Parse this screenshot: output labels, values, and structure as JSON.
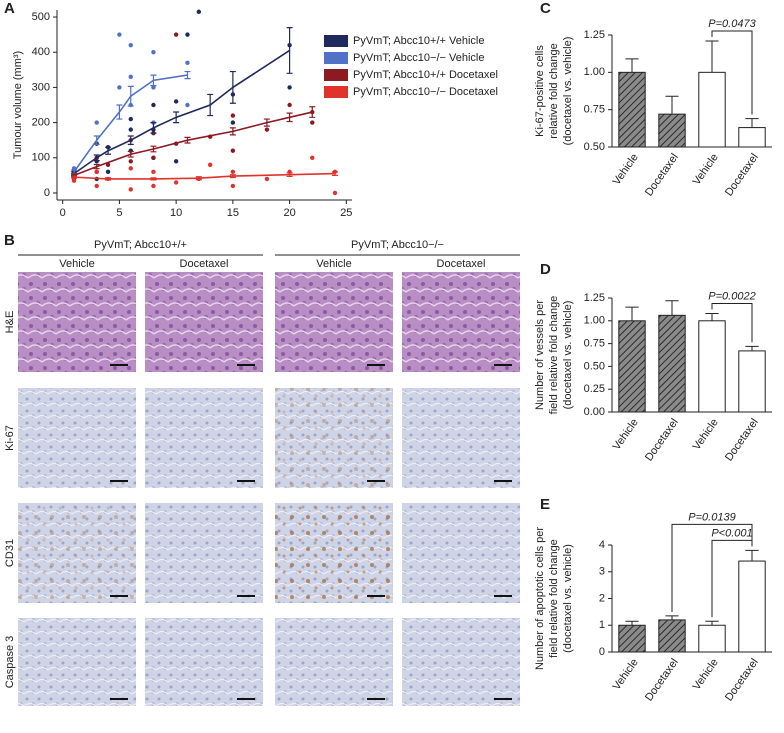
{
  "chart_data": [
    {
      "type": "line",
      "panel_label": "A",
      "ylabel": "Tumour volume (mm³)",
      "xlim": [
        -0.5,
        25.5
      ],
      "xticks": [
        0,
        5,
        10,
        15,
        20,
        25
      ],
      "ylim": [
        -20,
        520
      ],
      "yticks": [
        0,
        100,
        200,
        300,
        400,
        500
      ],
      "series": [
        {
          "name": "PyVmT; Abcc10+/+ Vehicle",
          "color": "#1f2a5c",
          "x": [
            1,
            3,
            4,
            6,
            8,
            10,
            13,
            15,
            20
          ],
          "values": [
            55,
            100,
            120,
            150,
            185,
            215,
            250,
            300,
            405
          ],
          "errors": [
            5,
            8,
            10,
            12,
            15,
            15,
            30,
            45,
            65
          ],
          "points_x": [
            1,
            1,
            3,
            3,
            3,
            4,
            4,
            6,
            6,
            6,
            8,
            8,
            8,
            10,
            10,
            11,
            12,
            15,
            15,
            20,
            20
          ],
          "points_y": [
            50,
            65,
            40,
            90,
            140,
            60,
            130,
            120,
            180,
            210,
            100,
            180,
            250,
            90,
            260,
            450,
            515,
            280,
            200,
            300,
            420
          ]
        },
        {
          "name": "PyVmT; Abcc10−/− Vehicle",
          "color": "#4f72c6",
          "x": [
            1,
            3,
            5,
            6,
            8,
            11
          ],
          "values": [
            60,
            150,
            230,
            275,
            320,
            335
          ],
          "errors": [
            5,
            12,
            20,
            28,
            15,
            10
          ],
          "points_x": [
            1,
            1,
            3,
            3,
            5,
            5,
            6,
            6,
            6,
            8,
            8,
            8,
            11,
            11
          ],
          "points_y": [
            55,
            70,
            100,
            200,
            300,
            450,
            250,
            330,
            420,
            200,
            300,
            400,
            250,
            370
          ]
        },
        {
          "name": "PyVmT; Abcc10+/+ Docetaxel",
          "color": "#8b1a22",
          "x": [
            1,
            3,
            6,
            8,
            11,
            15,
            18,
            20,
            22
          ],
          "values": [
            50,
            75,
            110,
            125,
            150,
            175,
            200,
            215,
            230
          ],
          "errors": [
            4,
            6,
            8,
            8,
            8,
            10,
            10,
            12,
            15
          ],
          "points_x": [
            1,
            1,
            3,
            3,
            4,
            6,
            6,
            8,
            8,
            10,
            10,
            13,
            15,
            15,
            18,
            20,
            22,
            22
          ],
          "points_y": [
            40,
            60,
            60,
            100,
            80,
            90,
            150,
            100,
            170,
            450,
            140,
            160,
            120,
            220,
            180,
            250,
            200,
            230
          ]
        },
        {
          "name": "PyVmT; Abcc10−/− Docetaxel",
          "color": "#e0332c",
          "x": [
            1,
            4,
            8,
            12,
            15,
            20,
            24
          ],
          "values": [
            45,
            40,
            40,
            42,
            48,
            52,
            55
          ],
          "errors": [
            3,
            3,
            3,
            4,
            4,
            5,
            5
          ],
          "points_x": [
            1,
            1,
            3,
            3,
            4,
            6,
            6,
            8,
            8,
            10,
            12,
            13,
            15,
            15,
            18,
            20,
            22,
            24,
            24
          ],
          "points_y": [
            35,
            50,
            20,
            60,
            40,
            10,
            70,
            20,
            60,
            30,
            40,
            80,
            20,
            60,
            40,
            60,
            100,
            0,
            60
          ]
        }
      ]
    },
    {
      "type": "bar",
      "panel_label": "C",
      "ylabel": [
        "Ki-67-positive cells",
        "relative fold change",
        "(docetaxel vs. vehicle)"
      ],
      "categories": [
        "Vehicle",
        "Docetaxel",
        "Vehicle",
        "Docetaxel"
      ],
      "values": [
        1.0,
        0.72,
        1.0,
        0.63
      ],
      "errors": [
        0.09,
        0.12,
        0.21,
        0.06
      ],
      "hatched": [
        true,
        true,
        false,
        false
      ],
      "ylim": [
        0.5,
        1.25
      ],
      "yticks": [
        {
          "value": 0.5,
          "label": "0.50"
        },
        {
          "value": 0.75,
          "label": "0.75"
        },
        {
          "value": 1.0,
          "label": "1.00"
        },
        {
          "value": 1.25,
          "label": "1.25"
        }
      ],
      "annotations": [
        "P=0.0473"
      ]
    },
    {
      "type": "bar",
      "panel_label": "D",
      "ylabel": [
        "Number of vessels per",
        "field relative fold change",
        "(docetaxel vs. vehicle)"
      ],
      "categories": [
        "Vehicle",
        "Docetaxel",
        "Vehicle",
        "Docetaxel"
      ],
      "values": [
        1.0,
        1.06,
        1.0,
        0.67
      ],
      "errors": [
        0.15,
        0.16,
        0.08,
        0.05
      ],
      "hatched": [
        true,
        true,
        false,
        false
      ],
      "ylim": [
        0,
        1.25
      ],
      "yticks": [
        {
          "value": 0,
          "label": "0.00"
        },
        {
          "value": 0.25,
          "label": "0.25"
        },
        {
          "value": 0.5,
          "label": "0.50"
        },
        {
          "value": 0.75,
          "label": "0.75"
        },
        {
          "value": 1.0,
          "label": "1.00"
        },
        {
          "value": 1.25,
          "label": "1.25"
        }
      ],
      "annotations": [
        "P=0.0022"
      ]
    },
    {
      "type": "bar",
      "panel_label": "E",
      "ylabel": [
        "Number of apoptotic cells per",
        "field relative fold change",
        "(docetaxel vs. vehicle)"
      ],
      "categories": [
        "Vehicle",
        "Docetaxel",
        "Vehicle",
        "Docetaxel"
      ],
      "values": [
        1.0,
        1.2,
        1.0,
        3.4
      ],
      "errors": [
        0.15,
        0.15,
        0.15,
        0.4
      ],
      "hatched": [
        true,
        true,
        false,
        false
      ],
      "ylim": [
        0,
        4
      ],
      "yticks": [
        0,
        1,
        2,
        3,
        4
      ],
      "annotations": [
        "P<0.001",
        "P=0.0139"
      ]
    }
  ],
  "panel_b": {
    "panel_label": "B",
    "groups": [
      {
        "title": "PyVmT; Abcc10+/+",
        "columns": [
          "Vehicle",
          "Docetaxel"
        ]
      },
      {
        "title": "PyVmT; Abcc10−/−",
        "columns": [
          "Vehicle",
          "Docetaxel"
        ]
      }
    ],
    "rows": [
      "H&E",
      "Ki-67",
      "CD31",
      "Caspase 3"
    ]
  }
}
